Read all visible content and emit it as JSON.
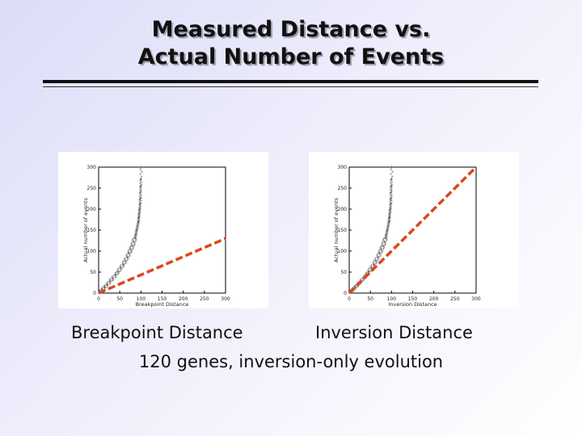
{
  "slide": {
    "title_line1": "Measured Distance vs.",
    "title_line2": "Actual Number of Events",
    "caption_left": "Breakpoint Distance",
    "caption_right": "Inversion Distance",
    "subtitle": "120 genes, inversion-only evolution"
  },
  "colors": {
    "ref_line": "#d9481c",
    "points": "#444444",
    "axis": "#000000"
  },
  "chart_data": [
    {
      "type": "scatter",
      "xlabel": "Breakpoint Distance",
      "ylabel": "Actual number of events",
      "xlim": [
        0,
        300
      ],
      "ylim": [
        0,
        300
      ],
      "xticks": [
        "0",
        "50",
        "100",
        "150",
        "200",
        "250",
        "300"
      ],
      "yticks": [
        "0",
        "50",
        "100",
        "150",
        "200",
        "250",
        "300"
      ],
      "grid": false,
      "series": [
        {
          "x": [
            3,
            8,
            14,
            20,
            27,
            33,
            40,
            46,
            52,
            58,
            63,
            68,
            72,
            76,
            80,
            83,
            86,
            88,
            90,
            92,
            94,
            95,
            96,
            97,
            98,
            98.5,
            99,
            99.5,
            100,
            100.5
          ],
          "y": [
            3,
            8,
            14,
            20,
            28,
            35,
            43,
            51,
            60,
            68,
            77,
            86,
            95,
            104,
            113,
            122,
            131,
            140,
            150,
            160,
            170,
            180,
            190,
            200,
            212,
            225,
            240,
            255,
            272,
            300
          ]
        }
      ],
      "reference_line": {
        "x": [
          0,
          300
        ],
        "y": [
          0,
          130
        ]
      }
    },
    {
      "type": "scatter",
      "xlabel": "Inversion Distance",
      "ylabel": "Actual number of events",
      "xlim": [
        0,
        300
      ],
      "ylim": [
        0,
        300
      ],
      "xticks": [
        "0",
        "50",
        "100",
        "150",
        "200",
        "250",
        "300"
      ],
      "yticks": [
        "0",
        "50",
        "100",
        "150",
        "200",
        "250",
        "300"
      ],
      "grid": false,
      "series": [
        {
          "x": [
            3,
            8,
            14,
            20,
            27,
            34,
            40,
            46,
            52,
            58,
            63,
            68,
            72,
            76,
            80,
            83,
            86,
            88,
            90,
            92,
            94,
            95,
            96,
            97,
            98,
            98.5,
            99,
            99.5,
            100,
            100.5
          ],
          "y": [
            3,
            8,
            14,
            20,
            28,
            35,
            43,
            51,
            60,
            68,
            77,
            86,
            95,
            104,
            113,
            122,
            131,
            140,
            150,
            160,
            170,
            180,
            190,
            200,
            212,
            225,
            240,
            255,
            272,
            300
          ]
        }
      ],
      "reference_line": {
        "x": [
          0,
          300
        ],
        "y": [
          0,
          300
        ]
      }
    }
  ]
}
